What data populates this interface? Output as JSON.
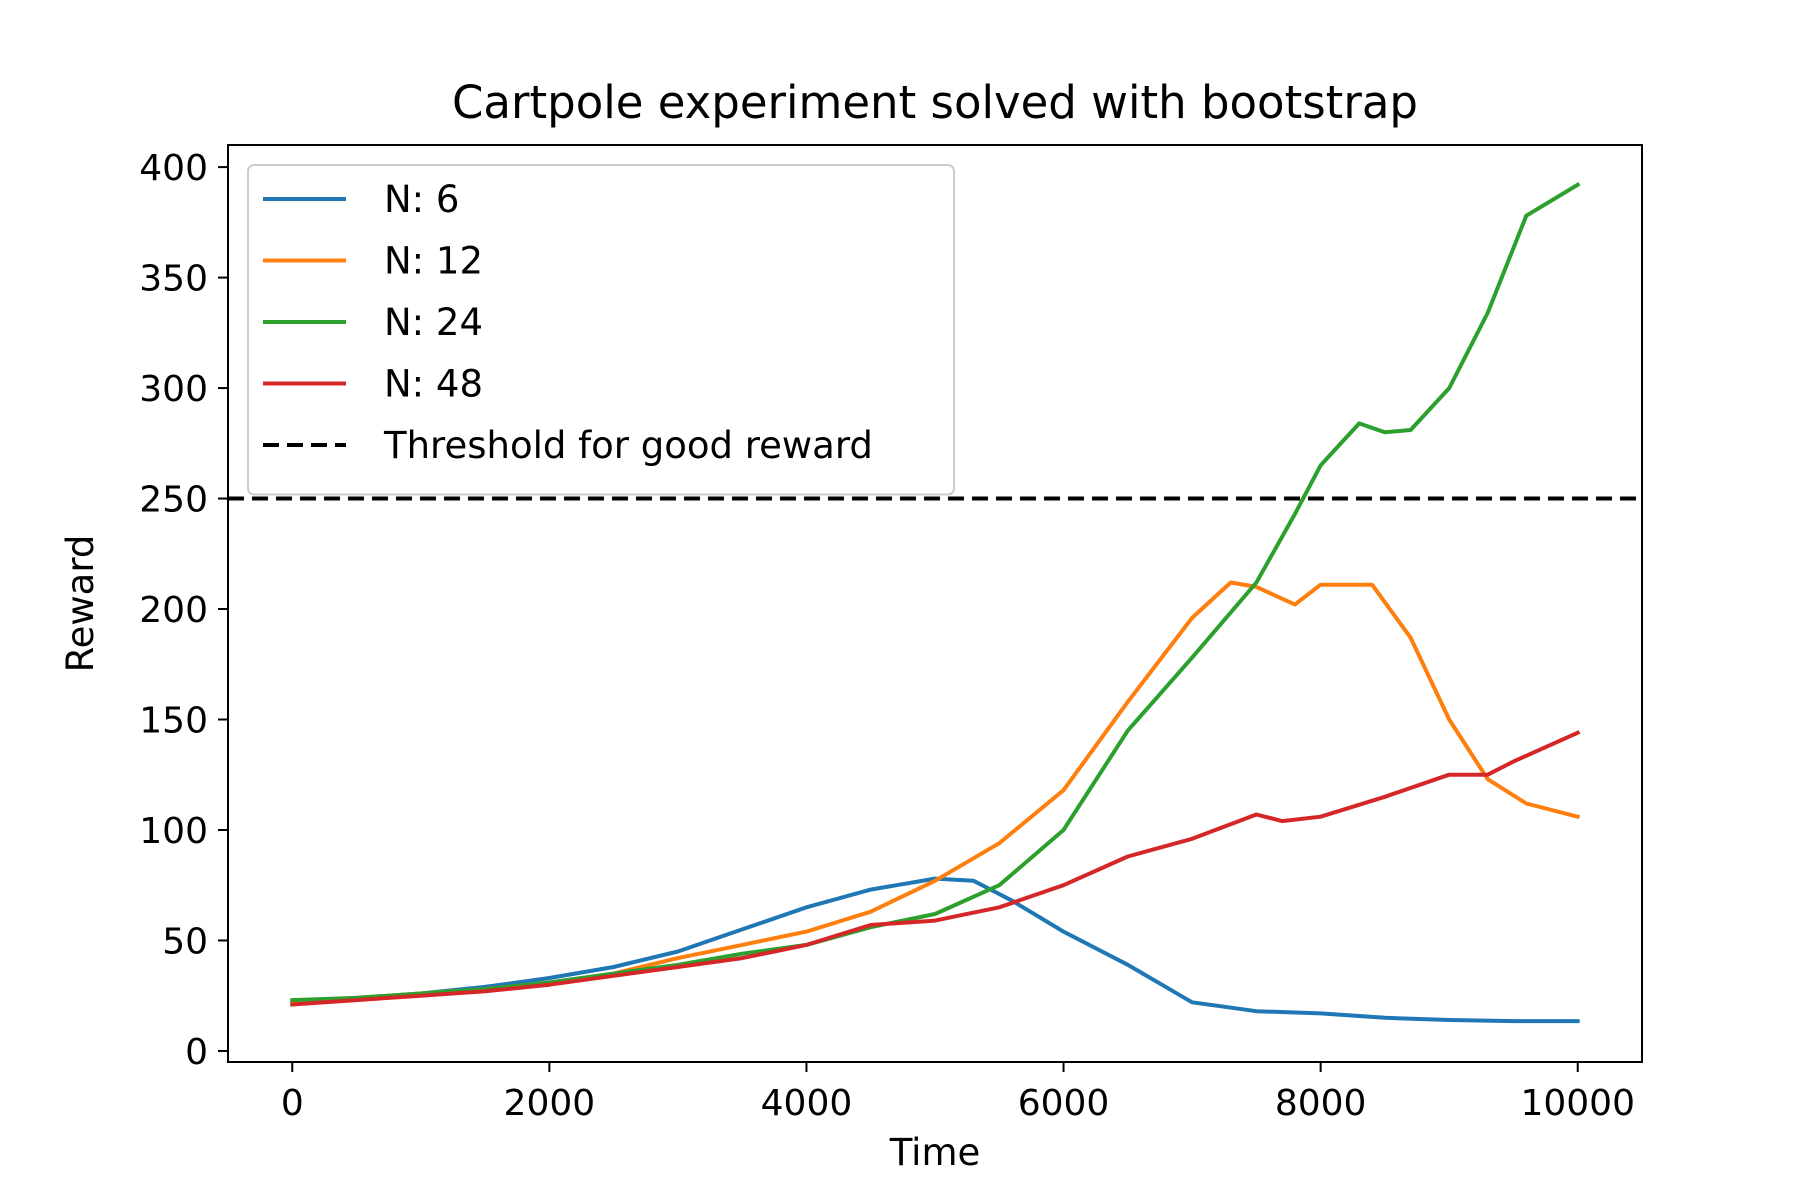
{
  "chart_data": {
    "type": "line",
    "title": "Cartpole experiment solved with bootstrap",
    "xlabel": "Time",
    "ylabel": "Reward",
    "xlim": [
      -500,
      10500
    ],
    "ylim": [
      -5,
      410
    ],
    "xticks": [
      0,
      2000,
      4000,
      6000,
      8000,
      10000
    ],
    "yticks": [
      0,
      50,
      100,
      150,
      200,
      250,
      300,
      350,
      400
    ],
    "grid": false,
    "legend_position": "top-left",
    "series": [
      {
        "name": "N: 6",
        "color": "#1f77b4",
        "x": [
          0,
          500,
          1000,
          1500,
          2000,
          2500,
          3000,
          3500,
          4000,
          4500,
          5000,
          5300,
          5600,
          6000,
          6500,
          7000,
          7500,
          8000,
          8500,
          9000,
          9500,
          10000
        ],
        "y": [
          22,
          24,
          26,
          29,
          33,
          38,
          45,
          55,
          65,
          73,
          78,
          77,
          68,
          54,
          39,
          22,
          18,
          17,
          15,
          14,
          13.5,
          13.5
        ]
      },
      {
        "name": "N: 12",
        "color": "#ff7f0e",
        "x": [
          0,
          500,
          1000,
          1500,
          2000,
          2500,
          3000,
          3500,
          4000,
          4500,
          5000,
          5500,
          6000,
          6500,
          7000,
          7300,
          7500,
          7800,
          8000,
          8400,
          8700,
          9000,
          9300,
          9600,
          10000
        ],
        "y": [
          22,
          24,
          26,
          28,
          31,
          35,
          42,
          48,
          54,
          63,
          77,
          94,
          118,
          158,
          196,
          212,
          210,
          202,
          211,
          211,
          187,
          150,
          123,
          112,
          106
        ]
      },
      {
        "name": "N: 24",
        "color": "#2ca02c",
        "x": [
          0,
          500,
          1000,
          1500,
          2000,
          2500,
          3000,
          3500,
          4000,
          4500,
          5000,
          5500,
          6000,
          6500,
          7000,
          7500,
          7800,
          8000,
          8300,
          8500,
          8700,
          9000,
          9300,
          9600,
          10000
        ],
        "y": [
          23,
          24,
          26,
          28,
          31,
          35,
          39,
          44,
          48,
          56,
          62,
          75,
          100,
          145,
          178,
          212,
          243,
          265,
          284,
          280,
          281,
          300,
          334,
          378,
          392
        ]
      },
      {
        "name": "N: 48",
        "color": "#d62728",
        "x": [
          0,
          500,
          1000,
          1500,
          2000,
          2500,
          3000,
          3500,
          4000,
          4500,
          5000,
          5500,
          6000,
          6500,
          7000,
          7500,
          7700,
          8000,
          8500,
          9000,
          9300,
          9500,
          10000
        ],
        "y": [
          21,
          23,
          25,
          27,
          30,
          34,
          38,
          42,
          48,
          57,
          59,
          65,
          75,
          88,
          96,
          107,
          104,
          106,
          115,
          125,
          125,
          131,
          144
        ]
      }
    ],
    "reference_lines": [
      {
        "name": "Threshold for good reward",
        "y": 250,
        "color": "#000000",
        "style": "dashed"
      }
    ]
  }
}
